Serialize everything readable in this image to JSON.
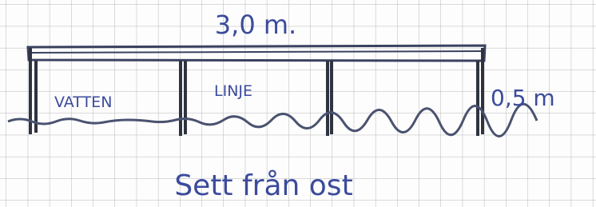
{
  "dimension": {
    "top_label": "3,0 m.",
    "side_label": "0,5 m"
  },
  "sections": [
    {
      "label": "VATTEN"
    },
    {
      "label": "LINJE"
    }
  ],
  "caption": "Sett från ost"
}
